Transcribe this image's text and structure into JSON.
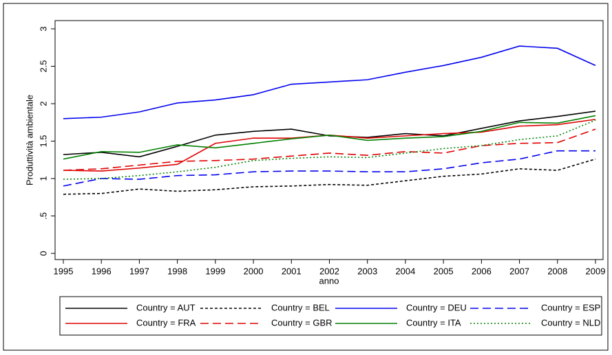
{
  "chart_data": {
    "type": "line",
    "x_label": "anno",
    "y_label": "Produttività ambientale",
    "x": [
      1995,
      1996,
      1997,
      1998,
      1999,
      2000,
      2001,
      2002,
      2003,
      2004,
      2005,
      2006,
      2007,
      2008,
      2009
    ],
    "xlim": [
      1995,
      2009
    ],
    "xticks": [
      1995,
      1996,
      1997,
      1998,
      1999,
      2000,
      2001,
      2002,
      2003,
      2004,
      2005,
      2006,
      2007,
      2008,
      2009
    ],
    "ylim": [
      0,
      3
    ],
    "yticks": [
      0,
      {
        "value": 0.5,
        "label": ".5"
      },
      1,
      1.5,
      2,
      2.5,
      3
    ],
    "grid": false,
    "legend": "bottom",
    "series": [
      {
        "name": "Country = AUT",
        "color": "#000000",
        "dash": "solid",
        "values": [
          1.32,
          1.35,
          1.29,
          1.43,
          1.58,
          1.63,
          1.66,
          1.57,
          1.55,
          1.6,
          1.57,
          1.67,
          1.77,
          1.83,
          1.9
        ]
      },
      {
        "name": "Country = BEL",
        "color": "#000000",
        "dash": "dash",
        "values": [
          0.79,
          0.8,
          0.86,
          0.83,
          0.85,
          0.89,
          0.9,
          0.92,
          0.91,
          0.97,
          1.03,
          1.06,
          1.13,
          1.11,
          1.26
        ]
      },
      {
        "name": "Country = DEU",
        "color": "#0000ee",
        "dash": "solid",
        "values": [
          1.8,
          1.82,
          1.89,
          2.01,
          2.05,
          2.12,
          2.26,
          2.29,
          2.32,
          2.42,
          2.51,
          2.62,
          2.77,
          2.74,
          2.51
        ]
      },
      {
        "name": "Country = ESP",
        "color": "#0000ee",
        "dash": "longdash",
        "values": [
          0.9,
          1.0,
          0.99,
          1.04,
          1.05,
          1.09,
          1.1,
          1.1,
          1.09,
          1.09,
          1.13,
          1.21,
          1.26,
          1.37,
          1.37
        ]
      },
      {
        "name": "Country = FRA",
        "color": "#e00000",
        "dash": "solid",
        "values": [
          1.11,
          1.1,
          1.14,
          1.19,
          1.47,
          1.54,
          1.54,
          1.58,
          1.54,
          1.57,
          1.6,
          1.62,
          1.7,
          1.72,
          1.79
        ]
      },
      {
        "name": "Country = GBR",
        "color": "#e00000",
        "dash": "longdash",
        "values": [
          1.11,
          1.13,
          1.18,
          1.23,
          1.24,
          1.26,
          1.3,
          1.34,
          1.31,
          1.36,
          1.34,
          1.44,
          1.47,
          1.48,
          1.66
        ]
      },
      {
        "name": "Country = ITA",
        "color": "#008000",
        "dash": "solid",
        "values": [
          1.26,
          1.36,
          1.35,
          1.45,
          1.41,
          1.47,
          1.53,
          1.58,
          1.51,
          1.54,
          1.56,
          1.63,
          1.75,
          1.74,
          1.84
        ]
      },
      {
        "name": "Country = NLD",
        "color": "#008000",
        "dash": "dot",
        "values": [
          0.99,
          1.0,
          1.04,
          1.09,
          1.15,
          1.24,
          1.27,
          1.29,
          1.28,
          1.34,
          1.4,
          1.44,
          1.52,
          1.57,
          1.78
        ]
      }
    ]
  }
}
